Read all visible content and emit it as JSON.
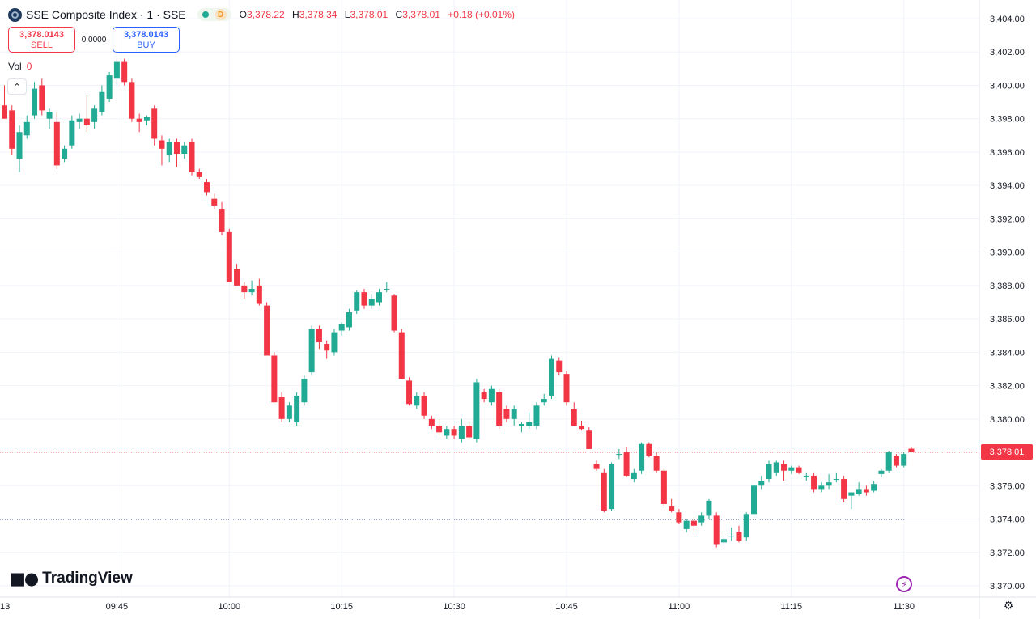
{
  "header": {
    "title": "SSE Composite Index · 1 · SSE",
    "status_letter": "D",
    "ohlc": [
      {
        "key": "O",
        "value": "3,378.22"
      },
      {
        "key": "H",
        "value": "3,378.34"
      },
      {
        "key": "L",
        "value": "3,378.01"
      },
      {
        "key": "C",
        "value": "3,378.01"
      }
    ],
    "change": "+0.18 (+0.01%)"
  },
  "trade": {
    "sell_price": "3,378.0143",
    "sell_label": "SELL",
    "spread": "0.0000",
    "buy_price": "3,378.0143",
    "buy_label": "BUY"
  },
  "volume": {
    "label": "Vol",
    "value": "0"
  },
  "branding": {
    "logo_text": "TradingView"
  },
  "last_price_tag": "3,378.01",
  "colors": {
    "up": "#22ab94",
    "down": "#f23645",
    "grid": "#f0f3fa",
    "accent": "#2962ff"
  },
  "icons": {
    "collapse": "chevron-up-icon",
    "flash": "lightning-icon",
    "settings": "gear-icon",
    "symbol": "index-logo-icon"
  },
  "chart_data": {
    "type": "candlestick",
    "y_axis_ticks": [
      "3,404.00",
      "3,402.00",
      "3,400.00",
      "3,398.00",
      "3,396.00",
      "3,394.00",
      "3,392.00",
      "3,390.00",
      "3,388.00",
      "3,386.00",
      "3,384.00",
      "3,382.00",
      "3,380.00",
      "3,378.00",
      "3,376.00",
      "3,374.00",
      "3,372.00",
      "3,370.00"
    ],
    "x_axis_ticks": [
      {
        "label": "13",
        "index": -1
      },
      {
        "label": "09:45",
        "index": 15
      },
      {
        "label": "10:00",
        "index": 30
      },
      {
        "label": "10:15",
        "index": 45
      },
      {
        "label": "10:30",
        "index": 60
      },
      {
        "label": "10:45",
        "index": 75
      },
      {
        "label": "11:00",
        "index": 90
      },
      {
        "label": "11:15",
        "index": 105
      },
      {
        "label": "11:30",
        "index": 120
      }
    ],
    "ylim": [
      3369.5,
      3404.5
    ],
    "last_price": 3378.01,
    "reference_price": 3373.95,
    "candles": [
      {
        "o": 3398.8,
        "h": 3400.0,
        "l": 3398.0,
        "c": 3398.0
      },
      {
        "o": 3398.5,
        "h": 3398.8,
        "l": 3395.8,
        "c": 3396.2
      },
      {
        "o": 3395.6,
        "h": 3397.6,
        "l": 3394.8,
        "c": 3397.2
      },
      {
        "o": 3397.0,
        "h": 3398.2,
        "l": 3396.8,
        "c": 3397.8
      },
      {
        "o": 3398.2,
        "h": 3400.2,
        "l": 3398.0,
        "c": 3399.8
      },
      {
        "o": 3400.0,
        "h": 3400.4,
        "l": 3398.2,
        "c": 3398.5
      },
      {
        "o": 3398.0,
        "h": 3398.6,
        "l": 3397.4,
        "c": 3398.4
      },
      {
        "o": 3397.8,
        "h": 3398.4,
        "l": 3395.0,
        "c": 3395.2
      },
      {
        "o": 3395.6,
        "h": 3396.4,
        "l": 3395.4,
        "c": 3396.2
      },
      {
        "o": 3396.4,
        "h": 3398.2,
        "l": 3396.2,
        "c": 3397.9
      },
      {
        "o": 3397.8,
        "h": 3398.3,
        "l": 3397.4,
        "c": 3398.0
      },
      {
        "o": 3398.0,
        "h": 3399.4,
        "l": 3397.2,
        "c": 3397.6
      },
      {
        "o": 3397.8,
        "h": 3398.8,
        "l": 3397.4,
        "c": 3398.6
      },
      {
        "o": 3398.4,
        "h": 3400.0,
        "l": 3398.2,
        "c": 3399.6
      },
      {
        "o": 3399.2,
        "h": 3400.8,
        "l": 3399.0,
        "c": 3400.6
      },
      {
        "o": 3400.4,
        "h": 3401.6,
        "l": 3400.0,
        "c": 3401.4
      },
      {
        "o": 3401.4,
        "h": 3401.6,
        "l": 3400.0,
        "c": 3400.2
      },
      {
        "o": 3400.2,
        "h": 3400.4,
        "l": 3397.8,
        "c": 3398.0
      },
      {
        "o": 3398.0,
        "h": 3398.3,
        "l": 3397.2,
        "c": 3397.8
      },
      {
        "o": 3397.9,
        "h": 3398.2,
        "l": 3397.6,
        "c": 3398.1
      },
      {
        "o": 3398.6,
        "h": 3398.8,
        "l": 3396.4,
        "c": 3396.8
      },
      {
        "o": 3396.7,
        "h": 3397.0,
        "l": 3395.2,
        "c": 3396.2
      },
      {
        "o": 3395.8,
        "h": 3396.8,
        "l": 3395.4,
        "c": 3396.6
      },
      {
        "o": 3396.6,
        "h": 3396.8,
        "l": 3395.1,
        "c": 3395.9
      },
      {
        "o": 3395.9,
        "h": 3396.6,
        "l": 3395.6,
        "c": 3396.4
      },
      {
        "o": 3396.6,
        "h": 3396.8,
        "l": 3394.6,
        "c": 3394.8
      },
      {
        "o": 3394.8,
        "h": 3395.0,
        "l": 3394.4,
        "c": 3394.5
      },
      {
        "o": 3394.2,
        "h": 3394.4,
        "l": 3393.4,
        "c": 3393.6
      },
      {
        "o": 3393.2,
        "h": 3393.5,
        "l": 3392.6,
        "c": 3392.8
      },
      {
        "o": 3392.6,
        "h": 3393.0,
        "l": 3391.0,
        "c": 3391.2
      },
      {
        "o": 3391.2,
        "h": 3391.4,
        "l": 3388.2,
        "c": 3388.2
      },
      {
        "o": 3389.0,
        "h": 3389.3,
        "l": 3388.0,
        "c": 3388.0
      },
      {
        "o": 3388.0,
        "h": 3388.2,
        "l": 3387.2,
        "c": 3387.6
      },
      {
        "o": 3387.6,
        "h": 3388.3,
        "l": 3387.4,
        "c": 3387.8
      },
      {
        "o": 3388.0,
        "h": 3388.4,
        "l": 3386.8,
        "c": 3386.9
      },
      {
        "o": 3386.8,
        "h": 3387.0,
        "l": 3383.8,
        "c": 3383.8
      },
      {
        "o": 3383.8,
        "h": 3384.0,
        "l": 3381.0,
        "c": 3381.0
      },
      {
        "o": 3381.3,
        "h": 3381.6,
        "l": 3379.8,
        "c": 3380.0
      },
      {
        "o": 3380.0,
        "h": 3381.0,
        "l": 3379.8,
        "c": 3380.8
      },
      {
        "o": 3379.8,
        "h": 3381.6,
        "l": 3379.6,
        "c": 3381.4
      },
      {
        "o": 3381.0,
        "h": 3382.6,
        "l": 3380.8,
        "c": 3382.4
      },
      {
        "o": 3382.8,
        "h": 3385.6,
        "l": 3382.6,
        "c": 3385.4
      },
      {
        "o": 3385.4,
        "h": 3385.6,
        "l": 3384.2,
        "c": 3384.6
      },
      {
        "o": 3384.5,
        "h": 3384.7,
        "l": 3383.6,
        "c": 3384.1
      },
      {
        "o": 3384.0,
        "h": 3385.4,
        "l": 3383.8,
        "c": 3385.2
      },
      {
        "o": 3385.3,
        "h": 3385.8,
        "l": 3385.0,
        "c": 3385.7
      },
      {
        "o": 3385.5,
        "h": 3386.6,
        "l": 3385.3,
        "c": 3386.4
      },
      {
        "o": 3386.5,
        "h": 3387.7,
        "l": 3386.3,
        "c": 3387.6
      },
      {
        "o": 3387.6,
        "h": 3387.8,
        "l": 3386.6,
        "c": 3386.8
      },
      {
        "o": 3386.8,
        "h": 3387.5,
        "l": 3386.6,
        "c": 3387.2
      },
      {
        "o": 3387.0,
        "h": 3387.8,
        "l": 3386.8,
        "c": 3387.6
      },
      {
        "o": 3387.8,
        "h": 3388.2,
        "l": 3387.6,
        "c": 3387.8
      },
      {
        "o": 3387.4,
        "h": 3387.5,
        "l": 3385.2,
        "c": 3385.3
      },
      {
        "o": 3385.2,
        "h": 3385.4,
        "l": 3382.4,
        "c": 3382.4
      },
      {
        "o": 3382.3,
        "h": 3382.5,
        "l": 3380.8,
        "c": 3380.9
      },
      {
        "o": 3380.8,
        "h": 3381.6,
        "l": 3380.6,
        "c": 3381.4
      },
      {
        "o": 3381.4,
        "h": 3381.6,
        "l": 3380.0,
        "c": 3380.2
      },
      {
        "o": 3380.0,
        "h": 3380.2,
        "l": 3379.4,
        "c": 3379.6
      },
      {
        "o": 3379.6,
        "h": 3380.0,
        "l": 3379.0,
        "c": 3379.2
      },
      {
        "o": 3379.0,
        "h": 3379.6,
        "l": 3378.8,
        "c": 3379.4
      },
      {
        "o": 3379.4,
        "h": 3379.6,
        "l": 3378.8,
        "c": 3379.0
      },
      {
        "o": 3378.8,
        "h": 3380.0,
        "l": 3378.6,
        "c": 3379.6
      },
      {
        "o": 3379.6,
        "h": 3379.8,
        "l": 3378.8,
        "c": 3378.9
      },
      {
        "o": 3378.8,
        "h": 3382.4,
        "l": 3378.6,
        "c": 3382.2
      },
      {
        "o": 3381.6,
        "h": 3381.8,
        "l": 3381.0,
        "c": 3381.2
      },
      {
        "o": 3381.0,
        "h": 3382.0,
        "l": 3380.8,
        "c": 3381.8
      },
      {
        "o": 3381.6,
        "h": 3381.8,
        "l": 3379.4,
        "c": 3379.6
      },
      {
        "o": 3380.6,
        "h": 3380.8,
        "l": 3379.8,
        "c": 3380.0
      },
      {
        "o": 3380.0,
        "h": 3380.8,
        "l": 3379.6,
        "c": 3380.6
      },
      {
        "o": 3379.6,
        "h": 3379.8,
        "l": 3379.2,
        "c": 3379.7
      },
      {
        "o": 3379.6,
        "h": 3380.4,
        "l": 3379.4,
        "c": 3379.8
      },
      {
        "o": 3379.6,
        "h": 3381.0,
        "l": 3379.4,
        "c": 3380.8
      },
      {
        "o": 3381.0,
        "h": 3381.5,
        "l": 3380.8,
        "c": 3381.2
      },
      {
        "o": 3381.4,
        "h": 3383.8,
        "l": 3381.2,
        "c": 3383.6
      },
      {
        "o": 3383.5,
        "h": 3383.7,
        "l": 3382.6,
        "c": 3382.8
      },
      {
        "o": 3382.7,
        "h": 3382.9,
        "l": 3380.8,
        "c": 3381.0
      },
      {
        "o": 3380.6,
        "h": 3381.0,
        "l": 3379.6,
        "c": 3379.6
      },
      {
        "o": 3379.6,
        "h": 3379.9,
        "l": 3379.3,
        "c": 3379.4
      },
      {
        "o": 3379.3,
        "h": 3379.5,
        "l": 3378.2,
        "c": 3378.2
      },
      {
        "o": 3377.3,
        "h": 3377.5,
        "l": 3376.9,
        "c": 3377.0
      },
      {
        "o": 3376.8,
        "h": 3377.0,
        "l": 3374.4,
        "c": 3374.5
      },
      {
        "o": 3374.6,
        "h": 3377.4,
        "l": 3374.5,
        "c": 3377.3
      },
      {
        "o": 3377.9,
        "h": 3378.2,
        "l": 3377.6,
        "c": 3377.9
      },
      {
        "o": 3378.0,
        "h": 3378.3,
        "l": 3376.5,
        "c": 3376.6
      },
      {
        "o": 3376.4,
        "h": 3377.0,
        "l": 3376.2,
        "c": 3376.8
      },
      {
        "o": 3376.9,
        "h": 3378.6,
        "l": 3376.7,
        "c": 3378.5
      },
      {
        "o": 3378.5,
        "h": 3378.6,
        "l": 3377.7,
        "c": 3377.8
      },
      {
        "o": 3377.8,
        "h": 3378.0,
        "l": 3376.8,
        "c": 3376.9
      },
      {
        "o": 3376.9,
        "h": 3377.0,
        "l": 3374.8,
        "c": 3374.9
      },
      {
        "o": 3374.8,
        "h": 3375.2,
        "l": 3374.4,
        "c": 3374.5
      },
      {
        "o": 3374.4,
        "h": 3374.6,
        "l": 3373.7,
        "c": 3373.8
      },
      {
        "o": 3373.4,
        "h": 3374.0,
        "l": 3373.2,
        "c": 3373.9
      },
      {
        "o": 3373.9,
        "h": 3374.1,
        "l": 3373.2,
        "c": 3373.6
      },
      {
        "o": 3373.8,
        "h": 3374.4,
        "l": 3373.6,
        "c": 3374.2
      },
      {
        "o": 3374.2,
        "h": 3375.2,
        "l": 3374.0,
        "c": 3375.1
      },
      {
        "o": 3374.2,
        "h": 3374.4,
        "l": 3372.3,
        "c": 3372.5
      },
      {
        "o": 3372.6,
        "h": 3373.0,
        "l": 3372.4,
        "c": 3372.8
      },
      {
        "o": 3373.0,
        "h": 3373.5,
        "l": 3372.7,
        "c": 3373.0
      },
      {
        "o": 3373.2,
        "h": 3373.6,
        "l": 3372.6,
        "c": 3372.7
      },
      {
        "o": 3372.9,
        "h": 3374.4,
        "l": 3372.7,
        "c": 3374.3
      },
      {
        "o": 3374.3,
        "h": 3376.2,
        "l": 3374.2,
        "c": 3376.0
      },
      {
        "o": 3376.0,
        "h": 3376.6,
        "l": 3375.8,
        "c": 3376.3
      },
      {
        "o": 3376.4,
        "h": 3377.5,
        "l": 3376.2,
        "c": 3377.3
      },
      {
        "o": 3376.8,
        "h": 3377.5,
        "l": 3376.6,
        "c": 3377.4
      },
      {
        "o": 3377.3,
        "h": 3377.5,
        "l": 3376.3,
        "c": 3376.9
      },
      {
        "o": 3376.9,
        "h": 3377.2,
        "l": 3376.7,
        "c": 3377.1
      },
      {
        "o": 3377.1,
        "h": 3377.2,
        "l": 3376.7,
        "c": 3376.8
      },
      {
        "o": 3376.6,
        "h": 3376.8,
        "l": 3376.3,
        "c": 3376.6
      },
      {
        "o": 3376.6,
        "h": 3376.8,
        "l": 3375.6,
        "c": 3375.8
      },
      {
        "o": 3375.8,
        "h": 3376.2,
        "l": 3375.6,
        "c": 3376.0
      },
      {
        "o": 3376.0,
        "h": 3376.7,
        "l": 3375.8,
        "c": 3376.2
      },
      {
        "o": 3376.4,
        "h": 3376.8,
        "l": 3376.2,
        "c": 3376.4
      },
      {
        "o": 3376.4,
        "h": 3376.6,
        "l": 3375.0,
        "c": 3375.2
      },
      {
        "o": 3375.4,
        "h": 3375.6,
        "l": 3374.6,
        "c": 3375.6
      },
      {
        "o": 3375.5,
        "h": 3376.2,
        "l": 3375.4,
        "c": 3375.8
      },
      {
        "o": 3375.8,
        "h": 3376.0,
        "l": 3375.4,
        "c": 3375.6
      },
      {
        "o": 3375.7,
        "h": 3376.3,
        "l": 3375.6,
        "c": 3376.1
      },
      {
        "o": 3376.7,
        "h": 3377.0,
        "l": 3376.5,
        "c": 3376.9
      },
      {
        "o": 3376.9,
        "h": 3378.1,
        "l": 3376.8,
        "c": 3378.0
      },
      {
        "o": 3377.8,
        "h": 3377.9,
        "l": 3377.1,
        "c": 3377.2
      },
      {
        "o": 3377.2,
        "h": 3378.0,
        "l": 3377.1,
        "c": 3377.9
      },
      {
        "o": 3378.22,
        "h": 3378.34,
        "l": 3378.01,
        "c": 3378.01
      }
    ]
  }
}
